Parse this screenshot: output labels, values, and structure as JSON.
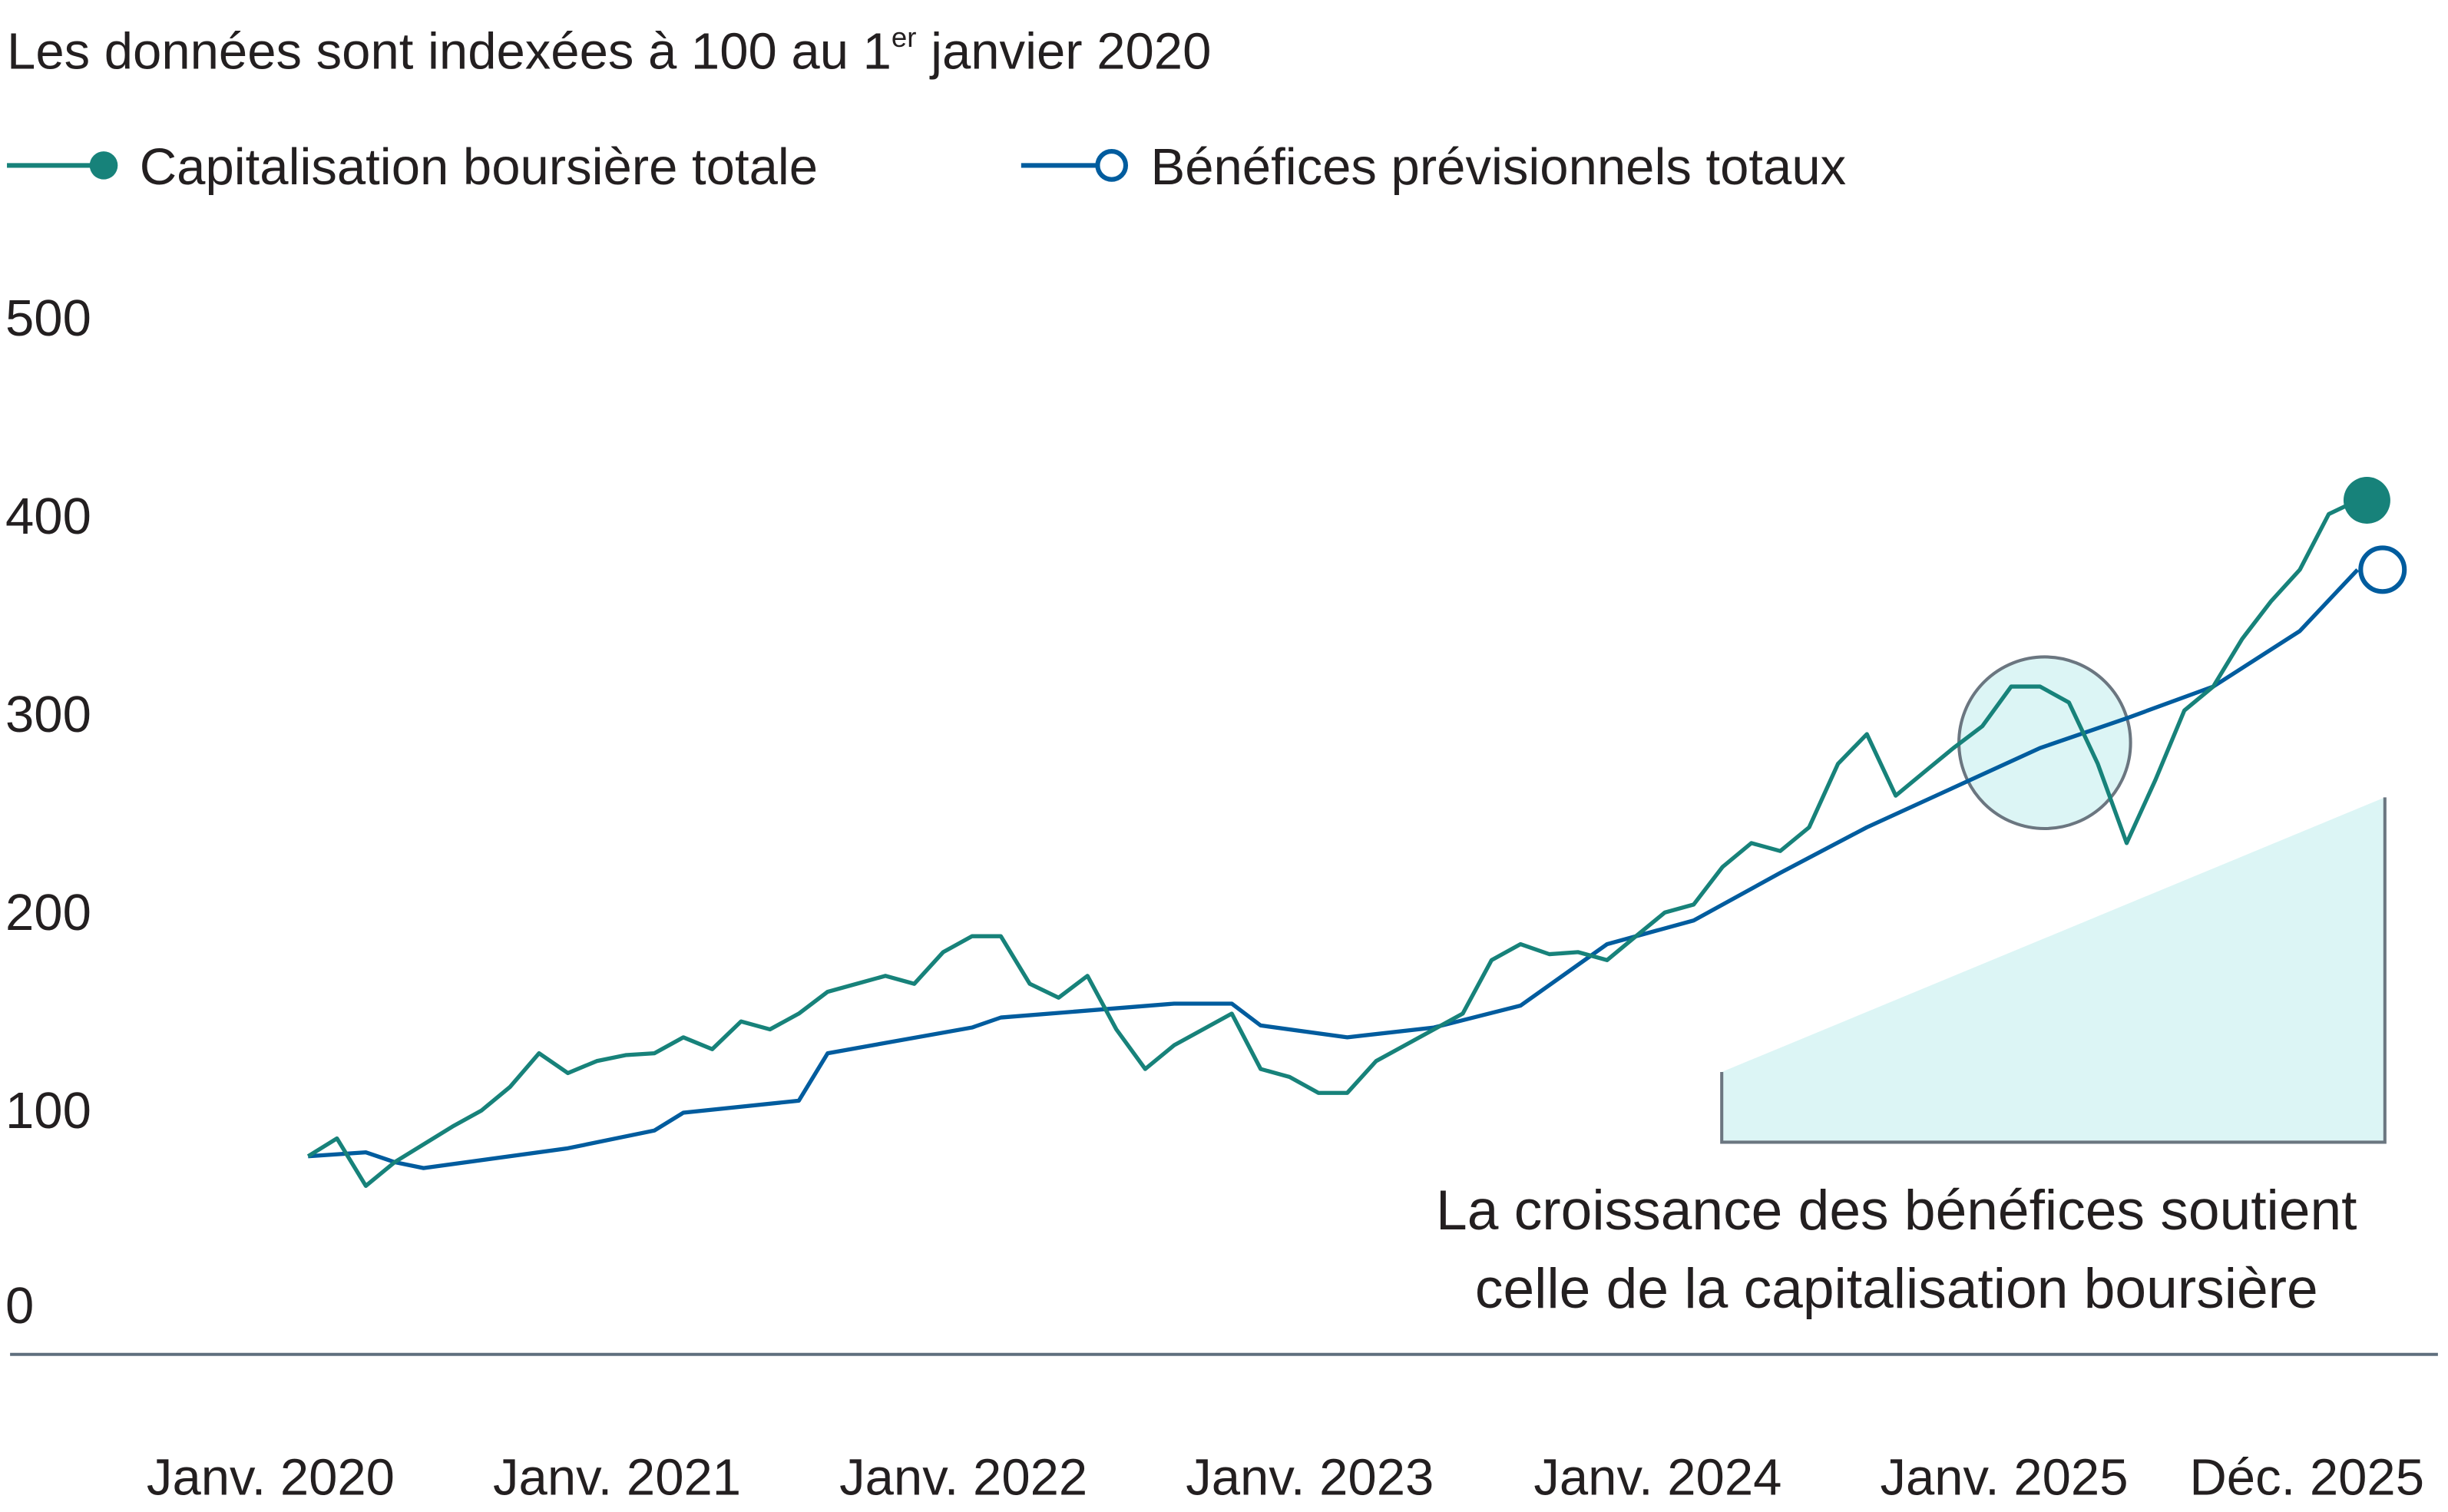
{
  "chart_data": {
    "type": "line",
    "subtitle": "Les données sont indexées à 100 au 1",
    "subtitle_sup": "er",
    "subtitle_end": " janvier 2020",
    "legend_placement": "top-left",
    "ylim": [
      0,
      500
    ],
    "yticks": [
      "500",
      "400",
      "300",
      "200",
      "100",
      "0"
    ],
    "xticks": [
      "Janv. 2020",
      "Janv. 2021",
      "Janv. 2022",
      "Janv. 2023",
      "Janv. 2024",
      "Janv. 2025",
      "Déc. 2025"
    ],
    "grid": false,
    "colors": {
      "market_cap": "#17827a",
      "earnings": "#005c9e",
      "highlight": "#dcf5f5",
      "annotation_stroke": "#6b7680",
      "axis": "#5f6f7d"
    },
    "annotation": [
      "La croissance des bénéfices soutient",
      "celle de la capitalisation boursière"
    ],
    "series": [
      {
        "name": "Capitalisation boursière totale",
        "marker": "filled-circle",
        "x": [
          "2020-01",
          "2020-02",
          "2020-03",
          "2020-04",
          "2020-05",
          "2020-06",
          "2020-07",
          "2020-08",
          "2020-09",
          "2020-10",
          "2020-11",
          "2020-12",
          "2021-01",
          "2021-02",
          "2021-03",
          "2021-04",
          "2021-05",
          "2021-06",
          "2021-07",
          "2021-08",
          "2021-09",
          "2021-10",
          "2021-11",
          "2021-12",
          "2022-01",
          "2022-02",
          "2022-03",
          "2022-04",
          "2022-05",
          "2022-06",
          "2022-07",
          "2022-08",
          "2022-09",
          "2022-10",
          "2022-11",
          "2022-12",
          "2023-01",
          "2023-02",
          "2023-03",
          "2023-04",
          "2023-05",
          "2023-06",
          "2023-07",
          "2023-08",
          "2023-09",
          "2023-10",
          "2023-11",
          "2023-12",
          "2024-01",
          "2024-02",
          "2024-03",
          "2024-04",
          "2024-05",
          "2024-06",
          "2024-07",
          "2024-08",
          "2024-09",
          "2024-10",
          "2024-11",
          "2024-12",
          "2025-01",
          "2025-02",
          "2025-03",
          "2025-04",
          "2025-05",
          "2025-06",
          "2025-07",
          "2025-08",
          "2025-09",
          "2025-10",
          "2025-11",
          "2025-12"
        ],
        "values": [
          100,
          109,
          85,
          97,
          106,
          115,
          123,
          135,
          152,
          142,
          148,
          151,
          152,
          160,
          154,
          168,
          164,
          172,
          183,
          187,
          191,
          187,
          203,
          211,
          211,
          187,
          180,
          191,
          164,
          144,
          156,
          164,
          172,
          144,
          140,
          132,
          132,
          148,
          156,
          164,
          172,
          199,
          207,
          202,
          203,
          199,
          211,
          223,
          227,
          246,
          258,
          254,
          266,
          298,
          313,
          282,
          294,
          306,
          317,
          337,
          337,
          329,
          298,
          258,
          290,
          325,
          337,
          361,
          380,
          396,
          424,
          431
        ]
      },
      {
        "name": "Bénéfices prévisionnels totaux",
        "marker": "open-circle",
        "x": [
          "2020-01",
          "2020-03",
          "2020-04",
          "2020-05",
          "2020-10",
          "2021-01",
          "2021-02",
          "2021-06",
          "2021-07",
          "2021-12",
          "2022-01",
          "2022-07",
          "2022-09",
          "2022-10",
          "2023-01",
          "2023-04",
          "2023-07",
          "2023-10",
          "2024-01",
          "2024-04",
          "2024-07",
          "2024-10",
          "2025-01",
          "2025-04",
          "2025-07",
          "2025-10",
          "2025-12"
        ],
        "values": [
          100,
          102,
          97,
          94,
          104,
          113,
          122,
          128,
          152,
          165,
          170,
          177,
          177,
          166,
          160,
          165,
          176,
          207,
          219,
          243,
          266,
          286,
          306,
          321,
          337,
          365,
          396
        ]
      }
    ]
  }
}
